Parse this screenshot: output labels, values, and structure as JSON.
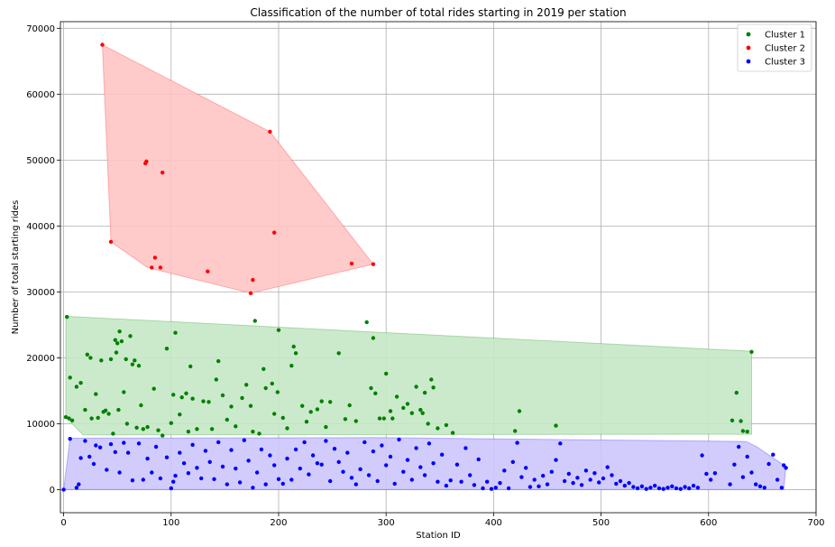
{
  "chart_data": {
    "type": "scatter",
    "title": "Classification of the number of total rides starting in 2019 per station",
    "xlabel": "Station ID",
    "ylabel": "Number of total starting rides",
    "xlim": [
      -3,
      700
    ],
    "ylim": [
      -3500,
      71000
    ],
    "xticks": [
      0,
      100,
      200,
      300,
      400,
      500,
      600,
      700
    ],
    "yticks": [
      0,
      10000,
      20000,
      30000,
      40000,
      50000,
      60000,
      70000
    ],
    "grid": true,
    "legend_position": "top-right",
    "series": [
      {
        "name": "Cluster 1",
        "color": "#008000",
        "fill": "#c5e8c5",
        "hull": [
          [
            2,
            26300
          ],
          [
            640,
            21000
          ],
          [
            640,
            8400
          ],
          [
            18,
            8300
          ],
          [
            2,
            11000
          ]
        ],
        "points": [
          [
            3,
            26200
          ],
          [
            6,
            17000
          ],
          [
            8,
            10500
          ],
          [
            2,
            11000
          ],
          [
            5,
            10800
          ],
          [
            12,
            15600
          ],
          [
            16,
            16200
          ],
          [
            20,
            12100
          ],
          [
            22,
            20500
          ],
          [
            25,
            20000
          ],
          [
            26,
            10800
          ],
          [
            30,
            14500
          ],
          [
            32,
            10900
          ],
          [
            35,
            19600
          ],
          [
            37,
            11800
          ],
          [
            39,
            12000
          ],
          [
            42,
            11500
          ],
          [
            44,
            19800
          ],
          [
            46,
            8500
          ],
          [
            48,
            22700
          ],
          [
            49,
            20800
          ],
          [
            50,
            22200
          ],
          [
            51,
            12100
          ],
          [
            52,
            24000
          ],
          [
            54,
            22500
          ],
          [
            56,
            14800
          ],
          [
            58,
            19800
          ],
          [
            59,
            10000
          ],
          [
            62,
            23300
          ],
          [
            64,
            19000
          ],
          [
            66,
            19600
          ],
          [
            68,
            9400
          ],
          [
            70,
            18800
          ],
          [
            72,
            12800
          ],
          [
            74,
            9200
          ],
          [
            78,
            9500
          ],
          [
            84,
            15300
          ],
          [
            88,
            9000
          ],
          [
            92,
            8200
          ],
          [
            96,
            21400
          ],
          [
            100,
            10100
          ],
          [
            102,
            14400
          ],
          [
            104,
            23800
          ],
          [
            108,
            11400
          ],
          [
            110,
            14000
          ],
          [
            114,
            14600
          ],
          [
            116,
            8800
          ],
          [
            118,
            18700
          ],
          [
            120,
            13800
          ],
          [
            124,
            9200
          ],
          [
            130,
            13400
          ],
          [
            135,
            13300
          ],
          [
            138,
            9200
          ],
          [
            142,
            16700
          ],
          [
            144,
            19500
          ],
          [
            148,
            14300
          ],
          [
            152,
            10600
          ],
          [
            156,
            12600
          ],
          [
            160,
            9600
          ],
          [
            166,
            13900
          ],
          [
            170,
            15900
          ],
          [
            174,
            12700
          ],
          [
            176,
            8800
          ],
          [
            178,
            25600
          ],
          [
            182,
            8500
          ],
          [
            186,
            18300
          ],
          [
            188,
            15400
          ],
          [
            194,
            16100
          ],
          [
            196,
            11500
          ],
          [
            199,
            14800
          ],
          [
            200,
            24200
          ],
          [
            204,
            10900
          ],
          [
            208,
            9300
          ],
          [
            212,
            18800
          ],
          [
            214,
            21700
          ],
          [
            216,
            20700
          ],
          [
            222,
            12700
          ],
          [
            226,
            10300
          ],
          [
            230,
            11800
          ],
          [
            236,
            12200
          ],
          [
            240,
            13400
          ],
          [
            244,
            9500
          ],
          [
            248,
            13300
          ],
          [
            256,
            20700
          ],
          [
            262,
            10700
          ],
          [
            266,
            12800
          ],
          [
            272,
            10400
          ],
          [
            282,
            25400
          ],
          [
            286,
            15400
          ],
          [
            288,
            23000
          ],
          [
            290,
            14600
          ],
          [
            294,
            10800
          ],
          [
            298,
            10800
          ],
          [
            300,
            17600
          ],
          [
            304,
            11900
          ],
          [
            306,
            10800
          ],
          [
            310,
            14100
          ],
          [
            316,
            12400
          ],
          [
            320,
            13000
          ],
          [
            324,
            11600
          ],
          [
            328,
            15600
          ],
          [
            332,
            12100
          ],
          [
            334,
            11600
          ],
          [
            336,
            14700
          ],
          [
            339,
            10000
          ],
          [
            342,
            16700
          ],
          [
            344,
            15500
          ],
          [
            348,
            9300
          ],
          [
            356,
            9800
          ],
          [
            362,
            8600
          ],
          [
            420,
            8900
          ],
          [
            424,
            11900
          ],
          [
            458,
            9700
          ],
          [
            622,
            10500
          ],
          [
            626,
            14700
          ],
          [
            630,
            10400
          ],
          [
            636,
            8800
          ],
          [
            640,
            20900
          ],
          [
            632,
            8900
          ]
        ]
      },
      {
        "name": "Cluster 2",
        "color": "#ff0000",
        "fill": "#ffc4c4",
        "hull": [
          [
            36,
            67500
          ],
          [
            192,
            54300
          ],
          [
            288,
            34200
          ],
          [
            174,
            29800
          ],
          [
            78,
            33700
          ],
          [
            44,
            37600
          ]
        ],
        "points": [
          [
            36,
            67500
          ],
          [
            44,
            37600
          ],
          [
            76,
            49500
          ],
          [
            77,
            49800
          ],
          [
            82,
            33700
          ],
          [
            85,
            35200
          ],
          [
            90,
            33700
          ],
          [
            92,
            48100
          ],
          [
            134,
            33100
          ],
          [
            174,
            29800
          ],
          [
            176,
            31800
          ],
          [
            192,
            54300
          ],
          [
            196,
            39000
          ],
          [
            268,
            34300
          ],
          [
            288,
            34200
          ]
        ]
      },
      {
        "name": "Cluster 3",
        "color": "#0000ff",
        "fill": "#ccc7fb",
        "hull": [
          [
            0,
            0
          ],
          [
            670,
            0
          ],
          [
            672,
            3500
          ],
          [
            645,
            6500
          ],
          [
            635,
            7300
          ],
          [
            290,
            7900
          ],
          [
            6,
            7800
          ]
        ],
        "points": [
          [
            0,
            0
          ],
          [
            6,
            7700
          ],
          [
            12,
            300
          ],
          [
            14,
            800
          ],
          [
            16,
            4800
          ],
          [
            20,
            7400
          ],
          [
            24,
            5000
          ],
          [
            28,
            3900
          ],
          [
            30,
            6700
          ],
          [
            34,
            6400
          ],
          [
            40,
            3000
          ],
          [
            44,
            6900
          ],
          [
            48,
            5700
          ],
          [
            52,
            2600
          ],
          [
            56,
            7100
          ],
          [
            60,
            5600
          ],
          [
            64,
            1400
          ],
          [
            70,
            7000
          ],
          [
            74,
            1500
          ],
          [
            78,
            4700
          ],
          [
            82,
            2600
          ],
          [
            86,
            6500
          ],
          [
            90,
            1700
          ],
          [
            96,
            4900
          ],
          [
            100,
            200
          ],
          [
            102,
            1200
          ],
          [
            104,
            2100
          ],
          [
            108,
            5600
          ],
          [
            112,
            4000
          ],
          [
            116,
            2500
          ],
          [
            120,
            6800
          ],
          [
            124,
            3300
          ],
          [
            128,
            1700
          ],
          [
            132,
            5900
          ],
          [
            136,
            4200
          ],
          [
            140,
            1600
          ],
          [
            144,
            7200
          ],
          [
            148,
            3500
          ],
          [
            152,
            800
          ],
          [
            156,
            6000
          ],
          [
            160,
            3200
          ],
          [
            164,
            1100
          ],
          [
            168,
            7500
          ],
          [
            172,
            4400
          ],
          [
            176,
            300
          ],
          [
            180,
            2600
          ],
          [
            184,
            6100
          ],
          [
            188,
            800
          ],
          [
            192,
            5200
          ],
          [
            196,
            3700
          ],
          [
            200,
            1600
          ],
          [
            204,
            900
          ],
          [
            208,
            4700
          ],
          [
            212,
            1500
          ],
          [
            216,
            6100
          ],
          [
            220,
            3200
          ],
          [
            224,
            7200
          ],
          [
            228,
            2300
          ],
          [
            232,
            5200
          ],
          [
            236,
            4000
          ],
          [
            240,
            3800
          ],
          [
            244,
            7400
          ],
          [
            248,
            1300
          ],
          [
            252,
            6200
          ],
          [
            256,
            4200
          ],
          [
            260,
            2700
          ],
          [
            264,
            5600
          ],
          [
            268,
            1800
          ],
          [
            272,
            800
          ],
          [
            276,
            3100
          ],
          [
            280,
            7200
          ],
          [
            284,
            2200
          ],
          [
            288,
            5800
          ],
          [
            292,
            1300
          ],
          [
            296,
            6700
          ],
          [
            300,
            3700
          ],
          [
            304,
            5000
          ],
          [
            308,
            900
          ],
          [
            312,
            7600
          ],
          [
            316,
            2700
          ],
          [
            320,
            4500
          ],
          [
            324,
            1500
          ],
          [
            328,
            6300
          ],
          [
            332,
            3400
          ],
          [
            336,
            2200
          ],
          [
            340,
            7000
          ],
          [
            344,
            4000
          ],
          [
            348,
            1200
          ],
          [
            352,
            5300
          ],
          [
            356,
            600
          ],
          [
            360,
            1400
          ],
          [
            366,
            3800
          ],
          [
            370,
            1200
          ],
          [
            374,
            6300
          ],
          [
            378,
            2200
          ],
          [
            382,
            700
          ],
          [
            386,
            4600
          ],
          [
            390,
            200
          ],
          [
            394,
            1200
          ],
          [
            398,
            100
          ],
          [
            402,
            300
          ],
          [
            406,
            1000
          ],
          [
            410,
            2900
          ],
          [
            414,
            200
          ],
          [
            418,
            4200
          ],
          [
            422,
            7100
          ],
          [
            426,
            1900
          ],
          [
            430,
            3300
          ],
          [
            434,
            400
          ],
          [
            438,
            1500
          ],
          [
            442,
            500
          ],
          [
            446,
            2100
          ],
          [
            450,
            800
          ],
          [
            454,
            2700
          ],
          [
            458,
            4500
          ],
          [
            462,
            7000
          ],
          [
            466,
            1300
          ],
          [
            470,
            2400
          ],
          [
            474,
            1000
          ],
          [
            478,
            1800
          ],
          [
            482,
            700
          ],
          [
            486,
            2900
          ],
          [
            490,
            1500
          ],
          [
            494,
            2500
          ],
          [
            498,
            1100
          ],
          [
            502,
            1700
          ],
          [
            506,
            3400
          ],
          [
            510,
            2200
          ],
          [
            514,
            900
          ],
          [
            518,
            1300
          ],
          [
            522,
            600
          ],
          [
            526,
            1000
          ],
          [
            530,
            400
          ],
          [
            534,
            200
          ],
          [
            538,
            500
          ],
          [
            542,
            100
          ],
          [
            546,
            300
          ],
          [
            550,
            600
          ],
          [
            554,
            200
          ],
          [
            558,
            100
          ],
          [
            562,
            300
          ],
          [
            566,
            500
          ],
          [
            570,
            200
          ],
          [
            574,
            100
          ],
          [
            578,
            400
          ],
          [
            582,
            200
          ],
          [
            586,
            600
          ],
          [
            590,
            300
          ],
          [
            594,
            5200
          ],
          [
            598,
            2400
          ],
          [
            602,
            1500
          ],
          [
            606,
            2500
          ],
          [
            620,
            800
          ],
          [
            624,
            3800
          ],
          [
            628,
            6500
          ],
          [
            632,
            1900
          ],
          [
            636,
            5000
          ],
          [
            640,
            2600
          ],
          [
            644,
            800
          ],
          [
            648,
            500
          ],
          [
            652,
            300
          ],
          [
            656,
            3900
          ],
          [
            660,
            5300
          ],
          [
            664,
            1500
          ],
          [
            668,
            300
          ],
          [
            670,
            3700
          ],
          [
            672,
            3300
          ]
        ]
      }
    ]
  }
}
